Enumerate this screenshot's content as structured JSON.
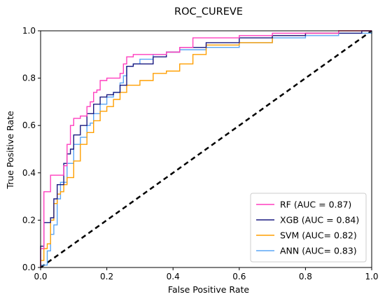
{
  "chart_data": {
    "type": "line",
    "title": "ROC_CUREVE",
    "xlabel": "False Positive Rate",
    "ylabel": "True Positive Rate",
    "xlim": [
      0,
      1
    ],
    "ylim": [
      0,
      1
    ],
    "xticks": [
      0.0,
      0.2,
      0.4,
      0.6,
      0.8,
      1.0
    ],
    "yticks": [
      0.0,
      0.2,
      0.4,
      0.6,
      0.8,
      1.0
    ],
    "grid": false,
    "legend_position": "bottom-right",
    "series": [
      {
        "name": "RF (AUC = 0.87)",
        "color": "#ff3fbf",
        "x": [
          0,
          0,
          0.01,
          0.01,
          0.03,
          0.03,
          0.07,
          0.08,
          0.09,
          0.1,
          0.12,
          0.14,
          0.15,
          0.16,
          0.17,
          0.18,
          0.2,
          0.22,
          0.24,
          0.25,
          0.26,
          0.28,
          0.3,
          0.34,
          0.38,
          0.42,
          0.46,
          0.5,
          0.6,
          0.7,
          0.8,
          0.9,
          0.94,
          0.97,
          1.0
        ],
        "y": [
          0,
          0.08,
          0.08,
          0.32,
          0.34,
          0.39,
          0.43,
          0.52,
          0.6,
          0.63,
          0.64,
          0.68,
          0.7,
          0.74,
          0.75,
          0.79,
          0.8,
          0.8,
          0.82,
          0.86,
          0.89,
          0.9,
          0.9,
          0.9,
          0.91,
          0.93,
          0.97,
          0.97,
          0.98,
          0.99,
          0.99,
          1.0,
          1.0,
          1.0,
          1.0
        ]
      },
      {
        "name": "XGB (AUC = 0.84)",
        "color": "#1a1a80",
        "x": [
          0,
          0,
          0.01,
          0.01,
          0.02,
          0.03,
          0.04,
          0.05,
          0.07,
          0.08,
          0.09,
          0.1,
          0.12,
          0.14,
          0.16,
          0.18,
          0.2,
          0.22,
          0.24,
          0.26,
          0.28,
          0.3,
          0.34,
          0.38,
          0.42,
          0.46,
          0.5,
          0.6,
          0.7,
          0.8,
          0.9,
          0.97,
          1.0
        ],
        "y": [
          0,
          0.09,
          0.13,
          0.19,
          0.19,
          0.21,
          0.29,
          0.35,
          0.44,
          0.48,
          0.5,
          0.56,
          0.6,
          0.65,
          0.69,
          0.72,
          0.73,
          0.74,
          0.77,
          0.85,
          0.86,
          0.86,
          0.89,
          0.91,
          0.93,
          0.93,
          0.95,
          0.97,
          0.98,
          0.99,
          0.99,
          1.0,
          1.0
        ]
      },
      {
        "name": "SVM (AUC= 0.82)",
        "color": "#ff9f00",
        "x": [
          0,
          0,
          0.01,
          0.02,
          0.03,
          0.04,
          0.05,
          0.06,
          0.07,
          0.08,
          0.1,
          0.12,
          0.14,
          0.16,
          0.18,
          0.2,
          0.22,
          0.24,
          0.26,
          0.28,
          0.3,
          0.34,
          0.38,
          0.42,
          0.46,
          0.5,
          0.6,
          0.7,
          0.8,
          0.9,
          1.0
        ],
        "y": [
          0,
          0.03,
          0.08,
          0.1,
          0.2,
          0.27,
          0.31,
          0.32,
          0.35,
          0.38,
          0.45,
          0.52,
          0.57,
          0.62,
          0.66,
          0.68,
          0.71,
          0.74,
          0.77,
          0.77,
          0.79,
          0.82,
          0.83,
          0.86,
          0.9,
          0.94,
          0.95,
          0.98,
          0.99,
          1.0,
          1.0
        ]
      },
      {
        "name": "ANN (AUC= 0.83)",
        "color": "#5aa5f5",
        "x": [
          0,
          0,
          0.02,
          0.03,
          0.04,
          0.05,
          0.06,
          0.08,
          0.1,
          0.12,
          0.14,
          0.15,
          0.16,
          0.18,
          0.2,
          0.22,
          0.24,
          0.25,
          0.26,
          0.28,
          0.3,
          0.34,
          0.38,
          0.42,
          0.46,
          0.5,
          0.6,
          0.7,
          0.8,
          0.9,
          1.0
        ],
        "y": [
          0,
          0.01,
          0.07,
          0.14,
          0.18,
          0.29,
          0.36,
          0.44,
          0.52,
          0.55,
          0.6,
          0.61,
          0.65,
          0.69,
          0.72,
          0.74,
          0.78,
          0.81,
          0.85,
          0.86,
          0.88,
          0.9,
          0.91,
          0.92,
          0.92,
          0.93,
          0.95,
          0.97,
          0.98,
          0.99,
          1.0
        ]
      }
    ],
    "reference_line": {
      "x": [
        0,
        1
      ],
      "y": [
        0,
        1
      ],
      "color": "#000000",
      "style": "dashed"
    }
  }
}
